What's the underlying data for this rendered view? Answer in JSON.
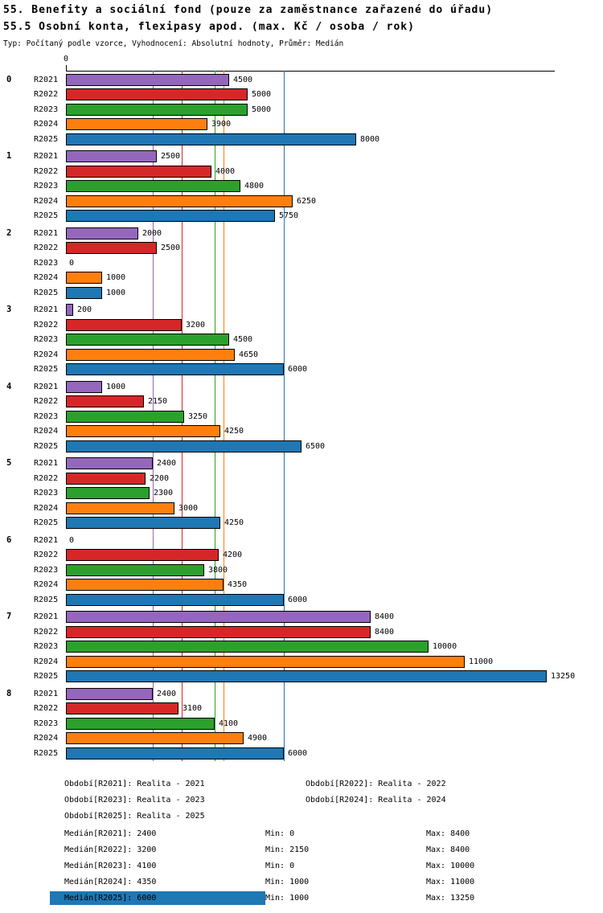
{
  "header": {
    "title_line1": "55. Benefity a sociální fond (pouze za zaměstnance zařazené do úřadu)",
    "title_line2": "55.5 Osobní konta, flexipasy apod. (max. Kč / osoba / rok)",
    "meta": "Typ: Počítaný podle vzorce, Vyhodnocení: Absolutní hodnoty, Průměr: Medián"
  },
  "axis": {
    "zero_label": "0"
  },
  "chart_data": {
    "type": "bar",
    "orientation": "horizontal",
    "title": "55.5 Osobní konta, flexipasy apod. (max. Kč / osoba / rok)",
    "xlabel": "",
    "ylabel": "",
    "xlim": [
      0,
      13250
    ],
    "grid": false,
    "legend_position": "bottom",
    "groups": [
      "0",
      "1",
      "2",
      "3",
      "4",
      "5",
      "6",
      "7",
      "8"
    ],
    "series": [
      {
        "name": "R2021",
        "color": "#9467bd",
        "median": 2400,
        "values": [
          4500,
          2500,
          2000,
          200,
          1000,
          2400,
          0,
          8400,
          2400
        ]
      },
      {
        "name": "R2022",
        "color": "#d62728",
        "median": 3200,
        "values": [
          5000,
          4000,
          2500,
          3200,
          2150,
          2200,
          4200,
          8400,
          3100
        ]
      },
      {
        "name": "R2023",
        "color": "#2ca02c",
        "median": 4100,
        "values": [
          5000,
          4800,
          0,
          4500,
          3250,
          2300,
          3800,
          10000,
          4100
        ]
      },
      {
        "name": "R2024",
        "color": "#ff7f0e",
        "median": 4350,
        "values": [
          3900,
          6250,
          1000,
          4650,
          4250,
          3000,
          4350,
          11000,
          4900
        ]
      },
      {
        "name": "R2025",
        "color": "#1f77b4",
        "median": 6000,
        "values": [
          8000,
          5750,
          1000,
          6000,
          6500,
          4250,
          6000,
          13250,
          6000
        ]
      }
    ]
  },
  "legend": {
    "items": [
      "Období[R2021]: Realita - 2021",
      "Období[R2022]: Realita - 2022",
      "Období[R2023]: Realita - 2023",
      "Období[R2024]: Realita - 2024",
      "Období[R2025]: Realita - 2025"
    ]
  },
  "stats": {
    "highlight_color": "#1f77b4",
    "rows": [
      {
        "median": "Medián[R2021]: 2400",
        "min": "Min: 0",
        "max": "Max: 8400",
        "highlight": false
      },
      {
        "median": "Medián[R2022]: 3200",
        "min": "Min: 2150",
        "max": "Max: 8400",
        "highlight": false
      },
      {
        "median": "Medián[R2023]: 4100",
        "min": "Min: 0",
        "max": "Max: 10000",
        "highlight": false
      },
      {
        "median": "Medián[R2024]: 4350",
        "min": "Min: 1000",
        "max": "Max: 11000",
        "highlight": false
      },
      {
        "median": "Medián[R2025]: 6000",
        "min": "Min: 1000",
        "max": "Max: 13250",
        "highlight": true
      }
    ]
  }
}
